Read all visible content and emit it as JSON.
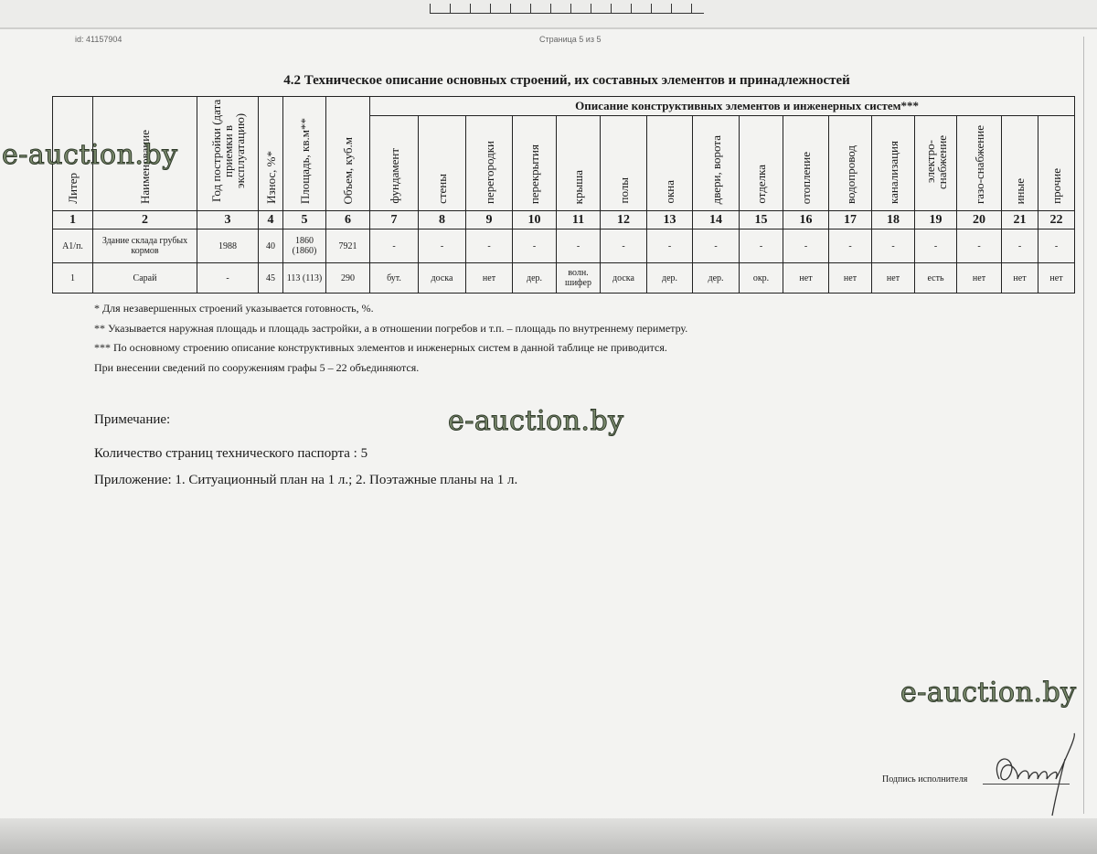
{
  "header": {
    "doc_id": "id: 41157904",
    "page_counter": "Страница 5 из 5"
  },
  "title": "4.2 Техническое описание основных строений, их составных элементов и принадлежностей",
  "table": {
    "group_header": "Описание конструктивных элементов и инженерных систем***",
    "columns": [
      "Литер",
      "Наименование",
      "Год постройки (дата приемки в эксплуатацию)",
      "Износ, %*",
      "Площадь, кв.м**",
      "Объем, куб.м",
      "фундамент",
      "стены",
      "перегородки",
      "перекрытия",
      "крыша",
      "полы",
      "окна",
      "двери, ворота",
      "отделка",
      "отопление",
      "водопровод",
      "канализация",
      "электро-снабжение",
      "газо-снабжение",
      "иные",
      "прочие"
    ],
    "numbers": [
      "1",
      "2",
      "3",
      "4",
      "5",
      "6",
      "7",
      "8",
      "9",
      "10",
      "11",
      "12",
      "13",
      "14",
      "15",
      "16",
      "17",
      "18",
      "19",
      "20",
      "21",
      "22"
    ],
    "rows": [
      [
        "А1/п.",
        "Здание склада грубых кормов",
        "1988",
        "40",
        "1860 (1860)",
        "7921",
        "-",
        "-",
        "-",
        "-",
        "-",
        "-",
        "-",
        "-",
        "-",
        "-",
        "-",
        "-",
        "-",
        "-",
        "-",
        "-"
      ],
      [
        "1",
        "Сарай",
        "-",
        "45",
        "113 (113)",
        "290",
        "бут.",
        "доска",
        "нет",
        "дер.",
        "волн. шифер",
        "доска",
        "дер.",
        "дер.",
        "окр.",
        "нет",
        "нет",
        "нет",
        "есть",
        "нет",
        "нет",
        "нет"
      ]
    ]
  },
  "notes": [
    "* Для незавершенных строений указывается готовность, %.",
    "** Указывается наружная площадь и площадь застройки, а в отношении погребов и т.п. – площадь по внутреннему периметру.",
    "*** По основному строению описание конструктивных элементов и инженерных систем в данной таблице не приводится.",
    "При внесении сведений по сооружениям  графы 5 – 22 объединяются."
  ],
  "remark_label": "Примечание:",
  "page_count": "Количество страниц технического паспорта : 5",
  "appendix": "Приложение: 1. Ситуационный план на 1 л.; 2. Поэтажные планы на 1 л.",
  "signature_label": "Подпись исполнителя",
  "watermark": "e-auction.by"
}
